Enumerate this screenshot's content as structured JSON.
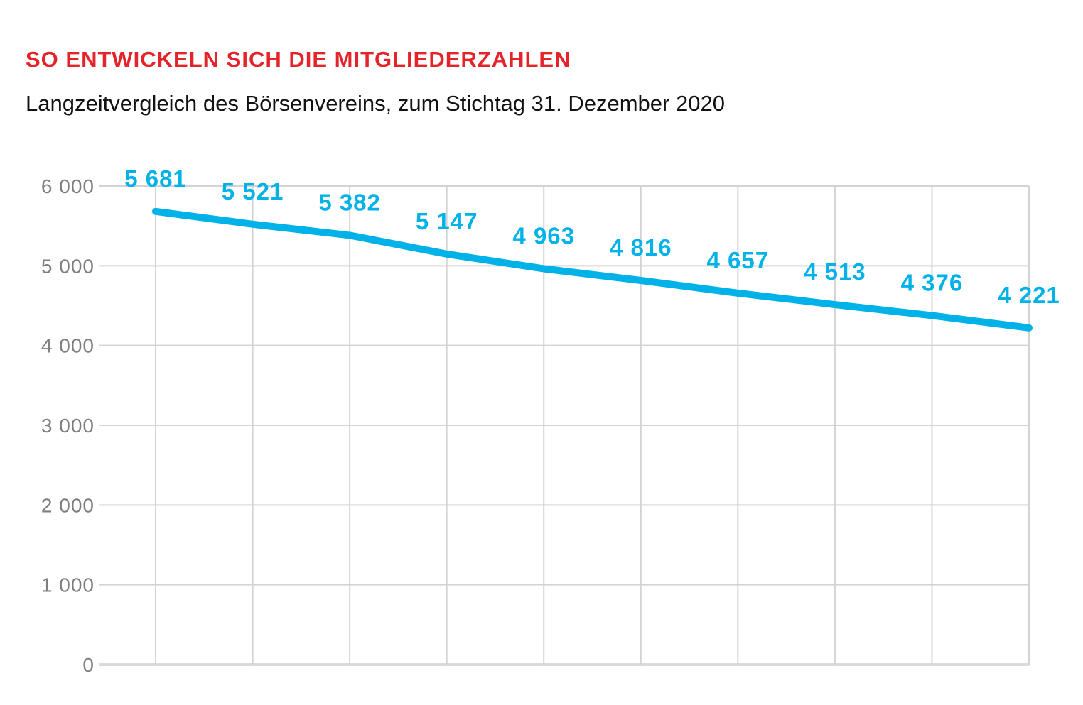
{
  "header": {
    "title": "SO ENTWICKELN SICH DIE MITGLIEDERZAHLEN",
    "subtitle": "Langzeitvergleich des Börsenvereins, zum Stichtag 31. Dezember 2020"
  },
  "colors": {
    "title_red": "#e4232b",
    "line_cyan": "#00b2e8",
    "tick_label_gray": "#7e7e7e",
    "grid_gray": "#d3d3d3",
    "axis_line_gray": "#dbdbdb",
    "subtitle_black": "#121212",
    "background": "#ffffff"
  },
  "chart_data": {
    "type": "line",
    "title": "SO ENTWICKELN SICH DIE MITGLIEDERZAHLEN",
    "subtitle": "Langzeitvergleich des Börsenvereins, zum Stichtag 31. Dezember 2020",
    "series": [
      {
        "name": "Mitgliederzahlen",
        "values": [
          5681,
          5521,
          5382,
          5147,
          4963,
          4816,
          4657,
          4513,
          4376,
          4221
        ]
      }
    ],
    "point_labels": [
      "5 681",
      "5 521",
      "5 382",
      "5 147",
      "4 963",
      "4 816",
      "4 657",
      "4 513",
      "4 376",
      "4 221"
    ],
    "y_ticks": [
      0,
      1000,
      2000,
      3000,
      4000,
      5000,
      6000
    ],
    "y_tick_labels": [
      "0",
      "1 000",
      "2 000",
      "3 000",
      "4 000",
      "5 000",
      "6 000"
    ],
    "ylim": [
      0,
      6000
    ],
    "xlabel": "",
    "ylabel": "",
    "grid": true,
    "legend": false,
    "x_tick_labels": []
  }
}
